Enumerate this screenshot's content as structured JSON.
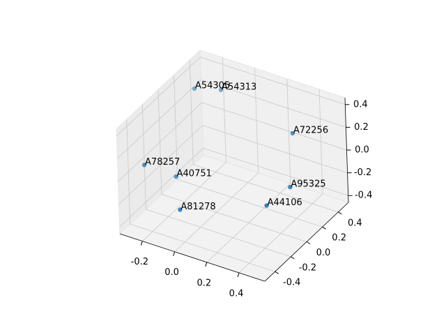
{
  "chart_data": {
    "type": "scatter3d",
    "labels": [
      "A54305",
      "A54313",
      "A72256",
      "A78257",
      "A40751",
      "A95325",
      "A81278",
      "A44106"
    ],
    "x": [
      -0.23,
      -0.13,
      0.28,
      -0.3,
      -0.2,
      0.32,
      -0.1,
      0.25
    ],
    "y": [
      0.23,
      0.36,
      0.42,
      -0.28,
      -0.09,
      0.29,
      -0.25,
      0.13
    ],
    "z": [
      0.37,
      0.32,
      0.09,
      0.0,
      -0.18,
      -0.28,
      -0.32,
      -0.37
    ],
    "color": "#1f77b4",
    "xlim": [
      -0.34,
      0.56
    ],
    "ylim": [
      -0.53,
      0.53
    ],
    "zlim": [
      -0.46,
      0.46
    ],
    "xticks": [
      -0.2,
      {
        "value": 0,
        "label": "0.0"
      },
      0.2,
      0.4
    ],
    "yticks": [
      -0.4,
      -0.2,
      {
        "value": 0,
        "label": "0.0"
      },
      0.2,
      0.4
    ],
    "zticks": [
      -0.4,
      -0.2,
      {
        "value": 0,
        "label": "0.0"
      },
      0.2,
      0.4
    ],
    "grid": true
  }
}
